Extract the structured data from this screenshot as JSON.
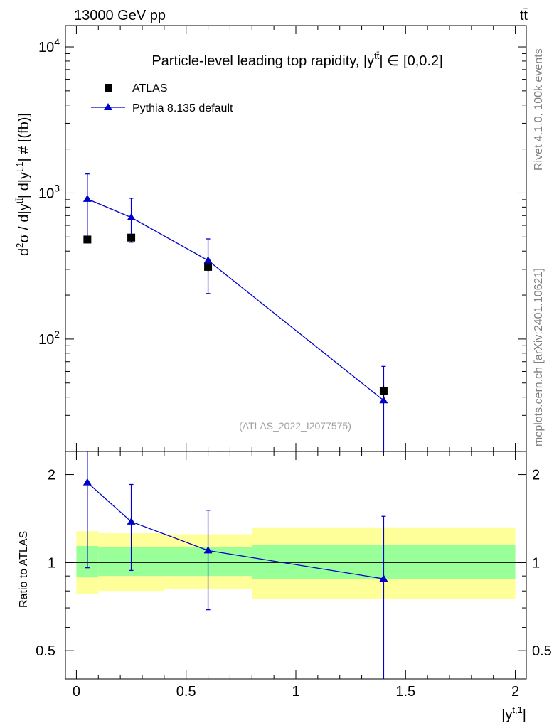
{
  "header": {
    "energy_label": "13000 GeV pp",
    "process_label": "tt̄"
  },
  "side_text": {
    "rivet": "Rivet 4.1.0,  100k events",
    "mcplots": "mcplots.cern.ch [arXiv:2401.10621]"
  },
  "colors": {
    "data": "#000000",
    "mc": "#0000cc",
    "band_inner": "#99ff99",
    "band_outer": "#ffff99"
  },
  "chart_data": [
    {
      "type": "scatter",
      "title": "Particle-level leading top rapidity, |y^tt̄| ∈ [0,0.2]",
      "title_main": "Particle-level leading top rapidity, |y",
      "title_sup": "tt̄",
      "title_tail": "| ∈ [0,0.2]",
      "ylabel": "d²σ / d|y^tt̄| d|y^t,1| # [(fb)]",
      "ylabel_pre": "d",
      "ylabel_sup1": "2",
      "ylabel_mid1": "σ / d|y",
      "ylabel_sup2": "tt̄",
      "ylabel_mid2": "| d|y",
      "ylabel_sup3": "t,1",
      "ylabel_tail": "| # [(fb)]",
      "yscale": "log",
      "ylim": [
        17,
        14000
      ],
      "xlim": [
        -0.05,
        2.05
      ],
      "ytick_labels": [
        "10",
        "10",
        "10"
      ],
      "ytick_exponents": [
        "2",
        "3",
        "4"
      ],
      "ytick_values": [
        100,
        1000,
        10000
      ],
      "legend": [
        {
          "label": "ATLAS",
          "marker": "square"
        },
        {
          "label": "Pythia 8.135 default",
          "marker": "triangle"
        }
      ],
      "reference": "(ATLAS_2022_I2077575)",
      "series": [
        {
          "name": "ATLAS",
          "x": [
            0.05,
            0.25,
            0.6,
            1.4
          ],
          "y": [
            480,
            495,
            312,
            44
          ],
          "y_err_low": [
            20,
            30,
            25,
            4
          ],
          "y_err_high": [
            20,
            30,
            25,
            4
          ]
        },
        {
          "name": "Pythia 8.135 default",
          "x": [
            0.05,
            0.25,
            0.6,
            1.4
          ],
          "y": [
            910,
            680,
            345,
            38
          ],
          "y_err_low": [
            440,
            220,
            140,
            35
          ],
          "y_err_high": [
            440,
            240,
            140,
            27
          ]
        }
      ]
    },
    {
      "type": "line",
      "ylabel": "Ratio to ATLAS",
      "xlabel": "|y^t,1|",
      "xlabel_main": "|y",
      "xlabel_sup": "t,1",
      "xlabel_tail": "|",
      "yscale": "log",
      "ylim": [
        0.4,
        2.4
      ],
      "xlim": [
        -0.05,
        2.05
      ],
      "ytick_values": [
        0.5,
        1,
        2
      ],
      "ytick_labels": [
        "0.5",
        "1",
        "2"
      ],
      "xtick_values": [
        0,
        0.5,
        1,
        1.5,
        2
      ],
      "xtick_labels": [
        "0",
        "0.5",
        "1",
        "1.5",
        "2"
      ],
      "bands": [
        {
          "x0": 0.0,
          "x1": 0.1,
          "inner": [
            0.89,
            1.14
          ],
          "outer": [
            0.78,
            1.28
          ]
        },
        {
          "x0": 0.1,
          "x1": 0.4,
          "inner": [
            0.9,
            1.13
          ],
          "outer": [
            0.8,
            1.26
          ]
        },
        {
          "x0": 0.4,
          "x1": 0.8,
          "inner": [
            0.9,
            1.13
          ],
          "outer": [
            0.81,
            1.25
          ]
        },
        {
          "x0": 0.8,
          "x1": 2.0,
          "inner": [
            0.88,
            1.15
          ],
          "outer": [
            0.75,
            1.32
          ]
        }
      ],
      "series": [
        {
          "name": "Pythia 8.135 default",
          "x": [
            0.05,
            0.25,
            0.6,
            1.4
          ],
          "y": [
            1.88,
            1.38,
            1.1,
            0.88
          ],
          "y_err_low": [
            0.92,
            0.44,
            0.41,
            0.88
          ],
          "y_err_high": [
            0.72,
            0.47,
            0.41,
            0.56
          ]
        }
      ]
    }
  ]
}
